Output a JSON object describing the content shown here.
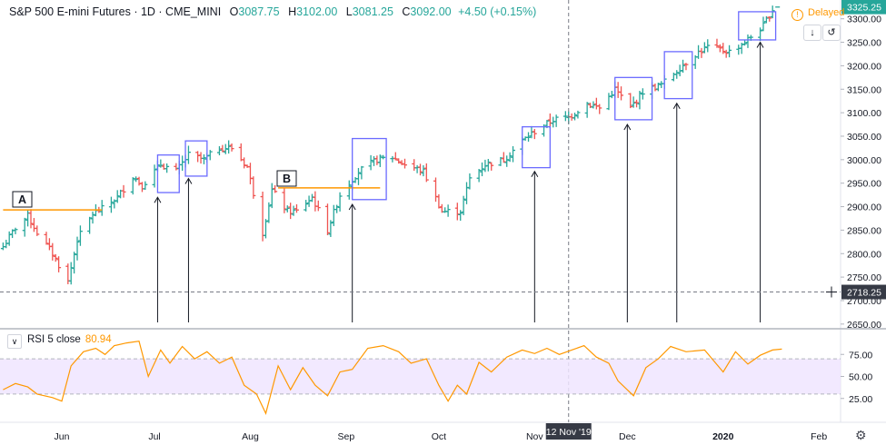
{
  "header": {
    "title": "S&P 500 E-mini Futures · 1D · CME_MINI",
    "open_label": "O",
    "open": "3087.75",
    "high_label": "H",
    "high": "3102.00",
    "low_label": "L",
    "low": "3081.25",
    "close_label": "C",
    "close": "3092.00",
    "change": "+4.50 (+0.15%)"
  },
  "status": {
    "delayed": "Delayed"
  },
  "rsi_panel": {
    "label": "RSI 5 close",
    "value": "80.94"
  },
  "crosshair": {
    "date_label": "12 Nov '19",
    "price_label": "2718.25"
  },
  "last_price_label": "3325.25",
  "annotations": {
    "a": "A",
    "b": "B"
  },
  "colors": {
    "up": "#26a69a",
    "down": "#ef5350",
    "rsi": "#ff9800",
    "box": "#6b6bff",
    "level": "#ff9800",
    "last_price": "#26a69a"
  },
  "chart_data": {
    "type": "ohlc",
    "x_ticks": [
      "Jun",
      "Jul",
      "Aug",
      "Sep",
      "Oct",
      "Nov",
      "Dec",
      "2020",
      "Feb"
    ],
    "y_ticks": [
      "3300.00",
      "3250.00",
      "3200.00",
      "3150.00",
      "3100.00",
      "3050.00",
      "3000.00",
      "2950.00",
      "2900.00",
      "2850.00",
      "2800.00",
      "2750.00",
      "2700.00",
      "2650.00"
    ],
    "ylim": [
      2640,
      3340
    ],
    "rsi_ticks": [
      "75.00",
      "50.00",
      "25.00"
    ],
    "rsi_ylim": [
      0,
      100
    ],
    "rsi_band": [
      30,
      70
    ],
    "close_path": [
      [
        "2019-05-13",
        2815
      ],
      [
        "2019-05-17",
        2855
      ],
      [
        "2019-05-21",
        2880
      ],
      [
        "2019-05-24",
        2845
      ],
      [
        "2019-05-29",
        2800
      ],
      [
        "2019-06-03",
        2740
      ],
      [
        "2019-06-06",
        2830
      ],
      [
        "2019-06-11",
        2885
      ],
      [
        "2019-06-14",
        2895
      ],
      [
        "2019-06-19",
        2920
      ],
      [
        "2019-06-24",
        2965
      ],
      [
        "2019-06-27",
        2945
      ],
      [
        "2019-07-03",
        2990
      ],
      [
        "2019-07-08",
        2975
      ],
      [
        "2019-07-12",
        3010
      ],
      [
        "2019-07-17",
        3000
      ],
      [
        "2019-07-22",
        3025
      ],
      [
        "2019-07-26",
        3025
      ],
      [
        "2019-07-31",
        2985
      ],
      [
        "2019-08-05",
        2845
      ],
      [
        "2019-08-08",
        2935
      ],
      [
        "2019-08-13",
        2890
      ],
      [
        "2019-08-16",
        2890
      ],
      [
        "2019-08-21",
        2920
      ],
      [
        "2019-08-26",
        2850
      ],
      [
        "2019-08-30",
        2925
      ],
      [
        "2019-09-05",
        2975
      ],
      [
        "2019-09-11",
        3000
      ],
      [
        "2019-09-16",
        3005
      ],
      [
        "2019-09-20",
        2990
      ],
      [
        "2019-09-26",
        2975
      ],
      [
        "2019-10-02",
        2890
      ],
      [
        "2019-10-08",
        2890
      ],
      [
        "2019-10-11",
        2960
      ],
      [
        "2019-10-16",
        2990
      ],
      [
        "2019-10-22",
        3000
      ],
      [
        "2019-10-28",
        3040
      ],
      [
        "2019-11-01",
        3060
      ],
      [
        "2019-11-07",
        3085
      ],
      [
        "2019-11-12",
        3090
      ],
      [
        "2019-11-18",
        3120
      ],
      [
        "2019-11-22",
        3110
      ],
      [
        "2019-11-27",
        3150
      ],
      [
        "2019-12-02",
        3110
      ],
      [
        "2019-12-06",
        3145
      ],
      [
        "2019-12-12",
        3160
      ],
      [
        "2019-12-17",
        3190
      ],
      [
        "2019-12-23",
        3225
      ],
      [
        "2019-12-27",
        3240
      ],
      [
        "2020-01-03",
        3230
      ],
      [
        "2020-01-08",
        3250
      ],
      [
        "2020-01-14",
        3285
      ],
      [
        "2020-01-17",
        3320
      ]
    ],
    "levels": [
      {
        "label": "A",
        "value": 2893,
        "from": "2019-05-13",
        "to": "2019-06-14"
      },
      {
        "label": "B",
        "value": 2940,
        "from": "2019-08-10",
        "to": "2019-09-12"
      }
    ],
    "boxes": [
      {
        "from": "2019-07-02",
        "to": "2019-07-09",
        "top": 3010,
        "bottom": 2930
      },
      {
        "from": "2019-07-11",
        "to": "2019-07-18",
        "top": 3040,
        "bottom": 2965
      },
      {
        "from": "2019-09-03",
        "to": "2019-09-14",
        "top": 3045,
        "bottom": 2915
      },
      {
        "from": "2019-10-28",
        "to": "2019-11-06",
        "top": 3070,
        "bottom": 2983
      },
      {
        "from": "2019-11-27",
        "to": "2019-12-09",
        "top": 3175,
        "bottom": 3085
      },
      {
        "from": "2019-12-13",
        "to": "2019-12-22",
        "top": 3230,
        "bottom": 3130
      },
      {
        "from": "2020-01-06",
        "to": "2020-01-18",
        "top": 3315,
        "bottom": 3255
      }
    ],
    "arrows": [
      {
        "date": "2019-07-02",
        "tip": 2920
      },
      {
        "date": "2019-07-12",
        "tip": 2960
      },
      {
        "date": "2019-09-03",
        "tip": 2905
      },
      {
        "date": "2019-11-01",
        "tip": 2975
      },
      {
        "date": "2019-12-01",
        "tip": 3075
      },
      {
        "date": "2019-12-17",
        "tip": 3120
      },
      {
        "date": "2020-01-13",
        "tip": 3250
      }
    ],
    "rsi": [
      [
        "2019-05-13",
        35
      ],
      [
        "2019-05-17",
        42
      ],
      [
        "2019-05-21",
        38
      ],
      [
        "2019-05-24",
        30
      ],
      [
        "2019-05-29",
        26
      ],
      [
        "2019-06-01",
        22
      ],
      [
        "2019-06-04",
        62
      ],
      [
        "2019-06-08",
        78
      ],
      [
        "2019-06-12",
        82
      ],
      [
        "2019-06-15",
        75
      ],
      [
        "2019-06-18",
        85
      ],
      [
        "2019-06-22",
        88
      ],
      [
        "2019-06-26",
        90
      ],
      [
        "2019-06-29",
        50
      ],
      [
        "2019-07-03",
        80
      ],
      [
        "2019-07-06",
        65
      ],
      [
        "2019-07-10",
        84
      ],
      [
        "2019-07-14",
        70
      ],
      [
        "2019-07-18",
        78
      ],
      [
        "2019-07-22",
        65
      ],
      [
        "2019-07-26",
        72
      ],
      [
        "2019-07-30",
        40
      ],
      [
        "2019-08-03",
        30
      ],
      [
        "2019-08-06",
        8
      ],
      [
        "2019-08-10",
        62
      ],
      [
        "2019-08-14",
        35
      ],
      [
        "2019-08-18",
        60
      ],
      [
        "2019-08-22",
        40
      ],
      [
        "2019-08-26",
        28
      ],
      [
        "2019-08-30",
        55
      ],
      [
        "2019-09-03",
        58
      ],
      [
        "2019-09-08",
        82
      ],
      [
        "2019-09-13",
        85
      ],
      [
        "2019-09-18",
        78
      ],
      [
        "2019-09-22",
        65
      ],
      [
        "2019-09-27",
        70
      ],
      [
        "2019-10-01",
        40
      ],
      [
        "2019-10-04",
        22
      ],
      [
        "2019-10-07",
        40
      ],
      [
        "2019-10-10",
        30
      ],
      [
        "2019-10-14",
        66
      ],
      [
        "2019-10-18",
        55
      ],
      [
        "2019-10-23",
        72
      ],
      [
        "2019-10-28",
        80
      ],
      [
        "2019-11-01",
        76
      ],
      [
        "2019-11-05",
        82
      ],
      [
        "2019-11-09",
        75
      ],
      [
        "2019-11-13",
        80
      ],
      [
        "2019-11-17",
        85
      ],
      [
        "2019-11-21",
        72
      ],
      [
        "2019-11-25",
        65
      ],
      [
        "2019-11-28",
        45
      ],
      [
        "2019-12-03",
        28
      ],
      [
        "2019-12-07",
        60
      ],
      [
        "2019-12-11",
        70
      ],
      [
        "2019-12-15",
        84
      ],
      [
        "2019-12-20",
        78
      ],
      [
        "2019-12-26",
        80
      ],
      [
        "2020-01-01",
        55
      ],
      [
        "2020-01-05",
        78
      ],
      [
        "2020-01-09",
        64
      ],
      [
        "2020-01-13",
        74
      ],
      [
        "2020-01-17",
        80
      ],
      [
        "2020-01-20",
        81
      ]
    ]
  }
}
